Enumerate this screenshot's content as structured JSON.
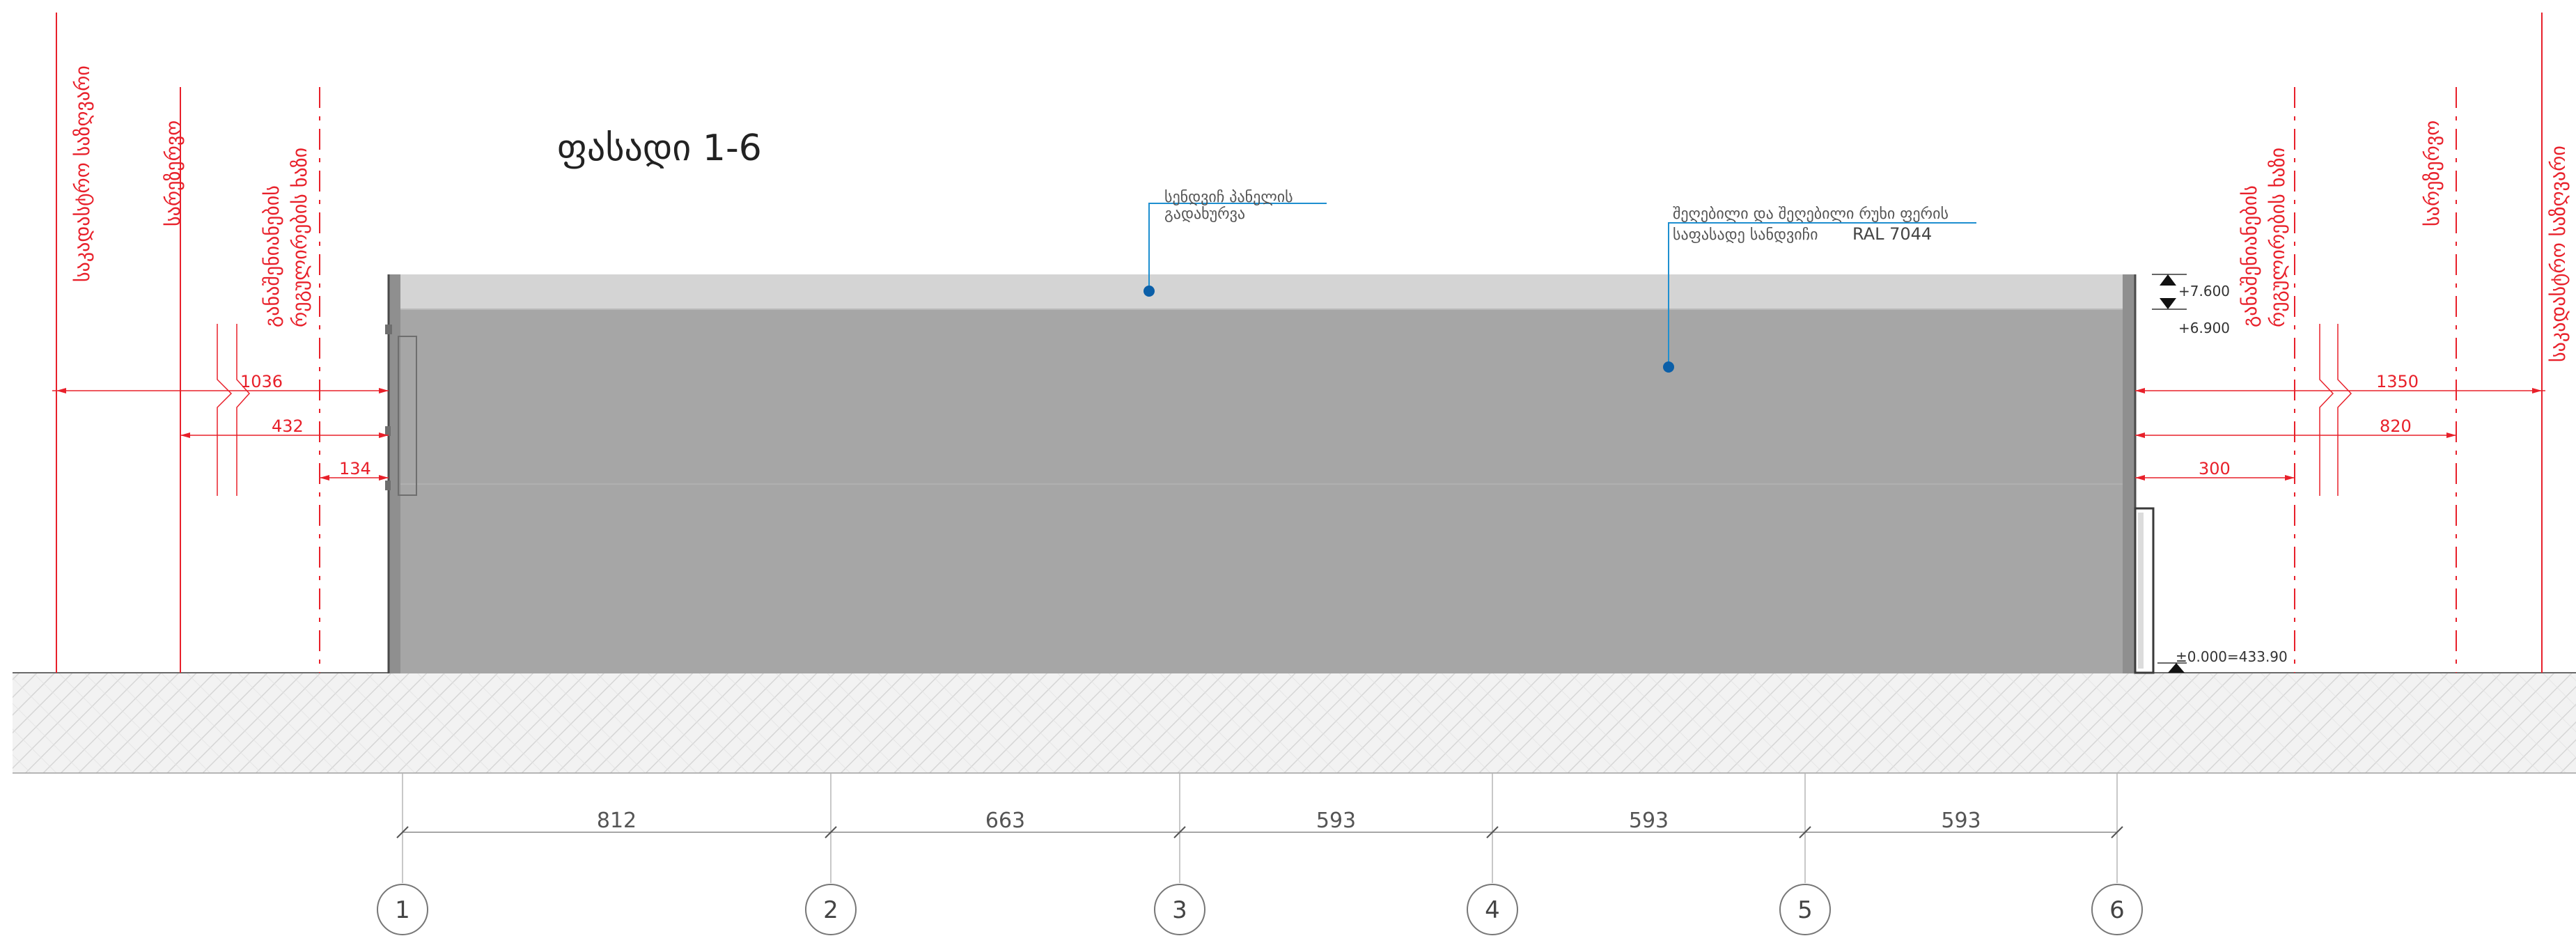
{
  "title": "ფასადი 1-6",
  "colors": {
    "building": "#a6a6a6",
    "roof_band": "#d4d4d4",
    "ground_fill": "#f0f0f0",
    "ground_hatch": "#d9d9d9",
    "red": "#e8202a",
    "dim_gray": "#8a8a8a",
    "leader_blue": "#1e8fd0",
    "marker_blue": "#0b5fa8"
  },
  "left_side": {
    "boundary_label": "საკადასტრო საზღვარი",
    "building_line_label": "სარეზერვო",
    "fire_line_label_1": "განაშენიანების",
    "fire_line_label_2": "რეგულირების ხაზი",
    "dim_1036": "1036",
    "dim_432": "432",
    "dim_134": "134"
  },
  "right_side": {
    "fire_line_label_1": "განაშენიანების",
    "fire_line_label_2": "რეგულირების ხაზი",
    "building_line_label": "სარეზერვო",
    "boundary_label": "საკადასტრო საზღვარი",
    "dim_1350": "1350",
    "dim_820": "820",
    "dim_300": "300"
  },
  "annotations": {
    "roof_note_1": "სენდვიჩ პანელის",
    "roof_note_2": "გადახურვა",
    "wall_note_1": "შეღებილი და შეღებილი რუხი ფერის",
    "wall_note_2": "საფასადე სანდვიჩი",
    "wall_note_ral": "RAL 7044"
  },
  "levels": {
    "top": "+7.600",
    "eave": "+6.900",
    "ground": "±0.000=433.90"
  },
  "axes": {
    "labels": [
      "1",
      "2",
      "3",
      "4",
      "5",
      "6"
    ],
    "spans": [
      "812",
      "663",
      "593",
      "593",
      "593"
    ]
  }
}
